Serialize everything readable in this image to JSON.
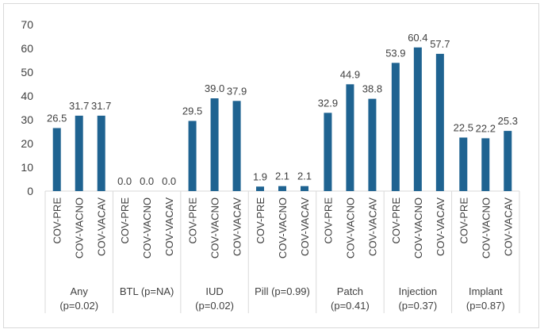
{
  "chart_data": {
    "type": "bar",
    "title": "",
    "xlabel": "",
    "ylabel": "",
    "ylim": [
      0,
      70
    ],
    "yticks": [
      0,
      10,
      20,
      30,
      40,
      50,
      60,
      70
    ],
    "grid": false,
    "bar_color": "#1f6391",
    "axis_color": "#d9d9d9",
    "text_color": "#404040",
    "groups": [
      {
        "name": "Any",
        "pvalue": "(p=0.02)",
        "bars": [
          {
            "label": "COV-PRE",
            "value": 26.5,
            "value_label": "26.5"
          },
          {
            "label": "COV-VACNO",
            "value": 31.7,
            "value_label": "31.7"
          },
          {
            "label": "COV-VACAV",
            "value": 31.7,
            "value_label": "31.7"
          }
        ]
      },
      {
        "name": "BTL (p=NA)",
        "pvalue": "",
        "bars": [
          {
            "label": "COV-PRE",
            "value": 0.0,
            "value_label": "0.0"
          },
          {
            "label": "COV-VACNO",
            "value": 0.0,
            "value_label": "0.0"
          },
          {
            "label": "COV-VACAV",
            "value": 0.0,
            "value_label": "0.0"
          }
        ]
      },
      {
        "name": "IUD",
        "pvalue": "(p=0.02)",
        "bars": [
          {
            "label": "COV-PRE",
            "value": 29.5,
            "value_label": "29.5"
          },
          {
            "label": "COV-VACNO",
            "value": 39.0,
            "value_label": "39.0"
          },
          {
            "label": "COV-VACAV",
            "value": 37.9,
            "value_label": "37.9"
          }
        ]
      },
      {
        "name": "Pill (p=0.99)",
        "pvalue": "",
        "bars": [
          {
            "label": "COV-PRE",
            "value": 1.9,
            "value_label": "1.9"
          },
          {
            "label": "COV-VACNO",
            "value": 2.1,
            "value_label": "2.1"
          },
          {
            "label": "COV-VACAV",
            "value": 2.1,
            "value_label": "2.1"
          }
        ]
      },
      {
        "name": "Patch",
        "pvalue": "(p=0.41)",
        "bars": [
          {
            "label": "COV-PRE",
            "value": 32.9,
            "value_label": "32.9"
          },
          {
            "label": "COV-VACNO",
            "value": 44.9,
            "value_label": "44.9"
          },
          {
            "label": "COV-VACAV",
            "value": 38.8,
            "value_label": "38.8"
          }
        ]
      },
      {
        "name": "Injection",
        "pvalue": "(p=0.37)",
        "bars": [
          {
            "label": "COV-PRE",
            "value": 53.9,
            "value_label": "53.9"
          },
          {
            "label": "COV-VACNO",
            "value": 60.4,
            "value_label": "60.4"
          },
          {
            "label": "COV-VACAV",
            "value": 57.7,
            "value_label": "57.7"
          }
        ]
      },
      {
        "name": "Implant",
        "pvalue": "(p=0.87)",
        "bars": [
          {
            "label": "COV-PRE",
            "value": 22.5,
            "value_label": "22.5"
          },
          {
            "label": "COV-VACNO",
            "value": 22.2,
            "value_label": "22.2"
          },
          {
            "label": "COV-VACAV",
            "value": 25.3,
            "value_label": "25.3"
          }
        ]
      }
    ]
  }
}
